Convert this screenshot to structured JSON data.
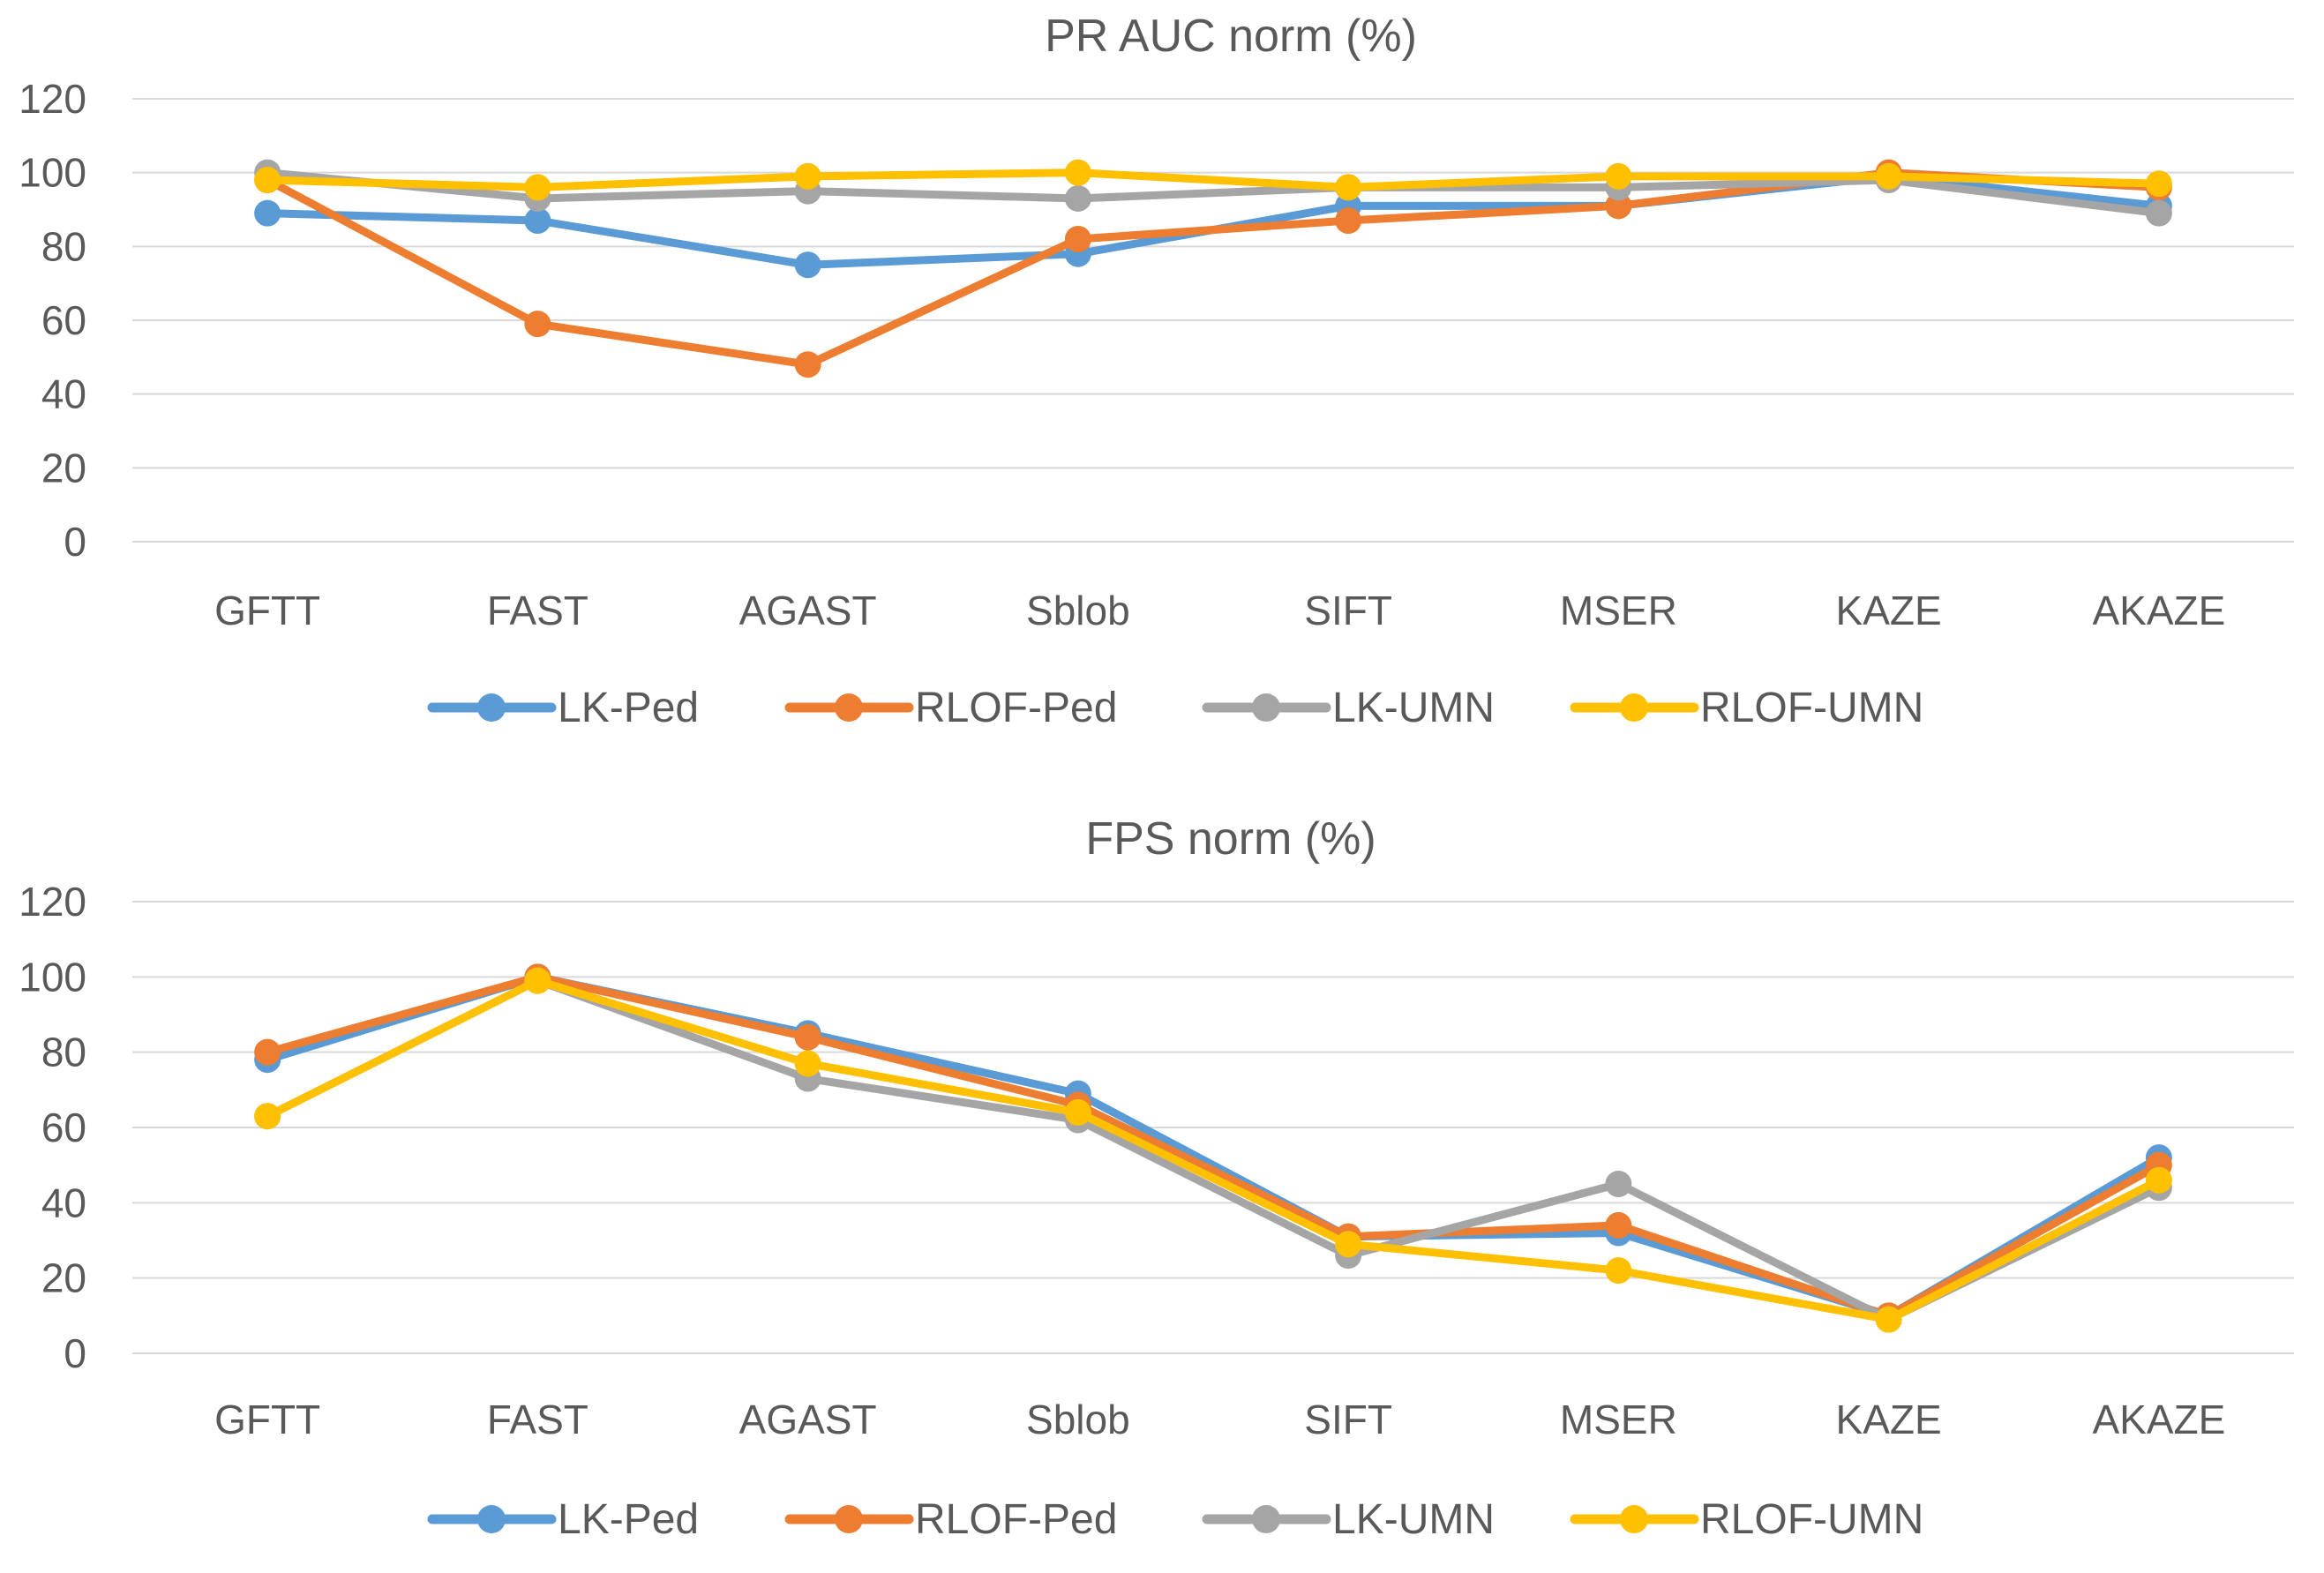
{
  "colors": {
    "LK-Ped": "#5B9BD5",
    "RLOF-Ped": "#ED7D31",
    "LK-UMN": "#A5A5A5",
    "RLOF-UMN": "#FFC000",
    "grid": "#d9d9d9",
    "text": "#595959"
  },
  "chart_data": [
    {
      "type": "line",
      "title": "PR AUC norm (%)",
      "categories": [
        "GFTT",
        "FAST",
        "AGAST",
        "Sblob",
        "SIFT",
        "MSER",
        "KAZE",
        "AKAZE"
      ],
      "ylim": [
        0,
        120
      ],
      "yticks": [
        0,
        20,
        40,
        60,
        80,
        100,
        120
      ],
      "grid": true,
      "legend": "bottom",
      "series": [
        {
          "name": "LK-Ped",
          "values": [
            89,
            87,
            75,
            78,
            91,
            91,
            99,
            91
          ]
        },
        {
          "name": "RLOF-Ped",
          "values": [
            98,
            59,
            48,
            82,
            87,
            91,
            100,
            96
          ]
        },
        {
          "name": "LK-UMN",
          "values": [
            100,
            93,
            95,
            93,
            96,
            96,
            98,
            89
          ]
        },
        {
          "name": "RLOF-UMN",
          "values": [
            98,
            96,
            99,
            100,
            96,
            99,
            99,
            97
          ]
        }
      ]
    },
    {
      "type": "line",
      "title": "FPS norm (%)",
      "categories": [
        "GFTT",
        "FAST",
        "AGAST",
        "Sblob",
        "SIFT",
        "MSER",
        "KAZE",
        "AKAZE"
      ],
      "ylim": [
        0,
        120
      ],
      "yticks": [
        0,
        20,
        40,
        60,
        80,
        100,
        120
      ],
      "grid": true,
      "legend": "bottom",
      "series": [
        {
          "name": "LK-Ped",
          "values": [
            78,
            100,
            85,
            69,
            31,
            32,
            10,
            52
          ]
        },
        {
          "name": "RLOF-Ped",
          "values": [
            80,
            100,
            84,
            66,
            31,
            34,
            10,
            50
          ]
        },
        {
          "name": "LK-UMN",
          "values": [
            63,
            99,
            73,
            62,
            26,
            45,
            9,
            44
          ]
        },
        {
          "name": "RLOF-UMN",
          "values": [
            63,
            99,
            77,
            64,
            29,
            22,
            9,
            46
          ]
        }
      ]
    }
  ]
}
